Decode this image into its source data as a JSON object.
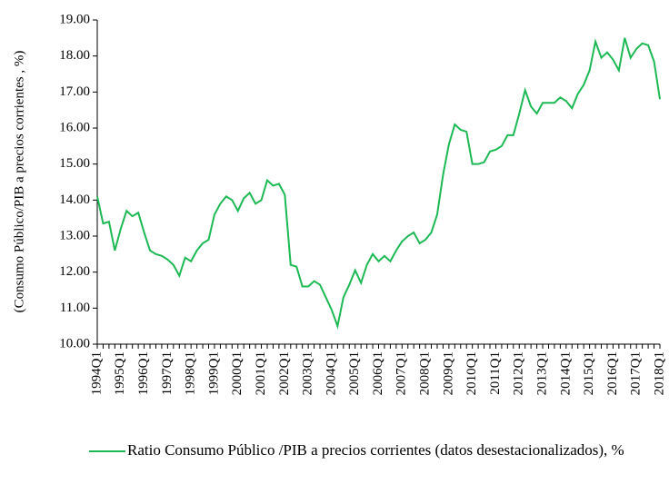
{
  "chart_data": {
    "type": "line",
    "y_label": "(Consumo Público/PIB a precios corrientes , %)",
    "categories": [
      "1994Q1",
      null,
      null,
      null,
      "1995Q1",
      null,
      null,
      null,
      "1996Q1",
      null,
      null,
      null,
      "1997Q1",
      null,
      null,
      null,
      "1998Q1",
      null,
      null,
      null,
      "1999Q1",
      null,
      null,
      null,
      "2000Q1",
      null,
      null,
      null,
      "2001Q1",
      null,
      null,
      null,
      "2002Q1",
      null,
      null,
      null,
      "2003Q1",
      null,
      null,
      null,
      "2004Q1",
      null,
      null,
      null,
      "2005Q1",
      null,
      null,
      null,
      "2006Q1",
      null,
      null,
      null,
      "2007Q1",
      null,
      null,
      null,
      "2008Q1",
      null,
      null,
      null,
      "2009Q1",
      null,
      null,
      null,
      "2010Q1",
      null,
      null,
      null,
      "2011Q1",
      null,
      null,
      null,
      "2012Q1",
      null,
      null,
      null,
      "2013Q1",
      null,
      null,
      null,
      "2014Q1",
      null,
      null,
      null,
      "2015Q1",
      null,
      null,
      null,
      "2016Q1",
      null,
      null,
      null,
      "2017Q1",
      null,
      null,
      null,
      "2018Q1"
    ],
    "series": [
      {
        "name": "Ratio Consumo Público /PIB a precios corrientes (datos desestacionalizados), %",
        "color": "#1db954",
        "values": [
          14.1,
          13.35,
          13.4,
          12.6,
          13.2,
          13.7,
          13.55,
          13.65,
          13.1,
          12.6,
          12.5,
          12.45,
          12.35,
          12.2,
          11.9,
          12.4,
          12.3,
          12.6,
          12.8,
          12.9,
          13.6,
          13.9,
          14.1,
          14.0,
          13.7,
          14.05,
          14.2,
          13.9,
          14.0,
          14.55,
          14.4,
          14.45,
          14.15,
          12.2,
          12.15,
          11.6,
          11.6,
          11.75,
          11.65,
          11.3,
          10.95,
          10.5,
          11.3,
          11.65,
          12.05,
          11.7,
          12.2,
          12.5,
          12.3,
          12.45,
          12.3,
          12.6,
          12.85,
          13.0,
          13.1,
          12.8,
          12.9,
          13.1,
          13.6,
          14.7,
          15.55,
          16.1,
          15.95,
          15.9,
          15.0,
          15.0,
          15.05,
          15.35,
          15.4,
          15.5,
          15.8,
          15.8,
          16.4,
          17.05,
          16.6,
          16.4,
          16.7,
          16.7,
          16.7,
          16.85,
          16.75,
          16.55,
          16.95,
          17.2,
          17.6,
          18.4,
          17.95,
          18.1,
          17.9,
          17.6,
          18.5,
          17.95,
          18.2,
          18.35,
          18.3,
          17.85,
          16.8
        ]
      }
    ],
    "ylim": [
      10,
      19
    ],
    "yticks": [
      {
        "value": 10,
        "label": "10.00"
      },
      {
        "value": 11,
        "label": "11.00"
      },
      {
        "value": 12,
        "label": "12.00"
      },
      {
        "value": 13,
        "label": "13.00"
      },
      {
        "value": 14,
        "label": "14.00"
      },
      {
        "value": 15,
        "label": "15.00"
      },
      {
        "value": 16,
        "label": "16.00"
      },
      {
        "value": 17,
        "label": "17.00"
      },
      {
        "value": 18,
        "label": "18.00"
      },
      {
        "value": 19,
        "label": "19.00"
      }
    ],
    "grid": false,
    "legend": "bottom"
  }
}
